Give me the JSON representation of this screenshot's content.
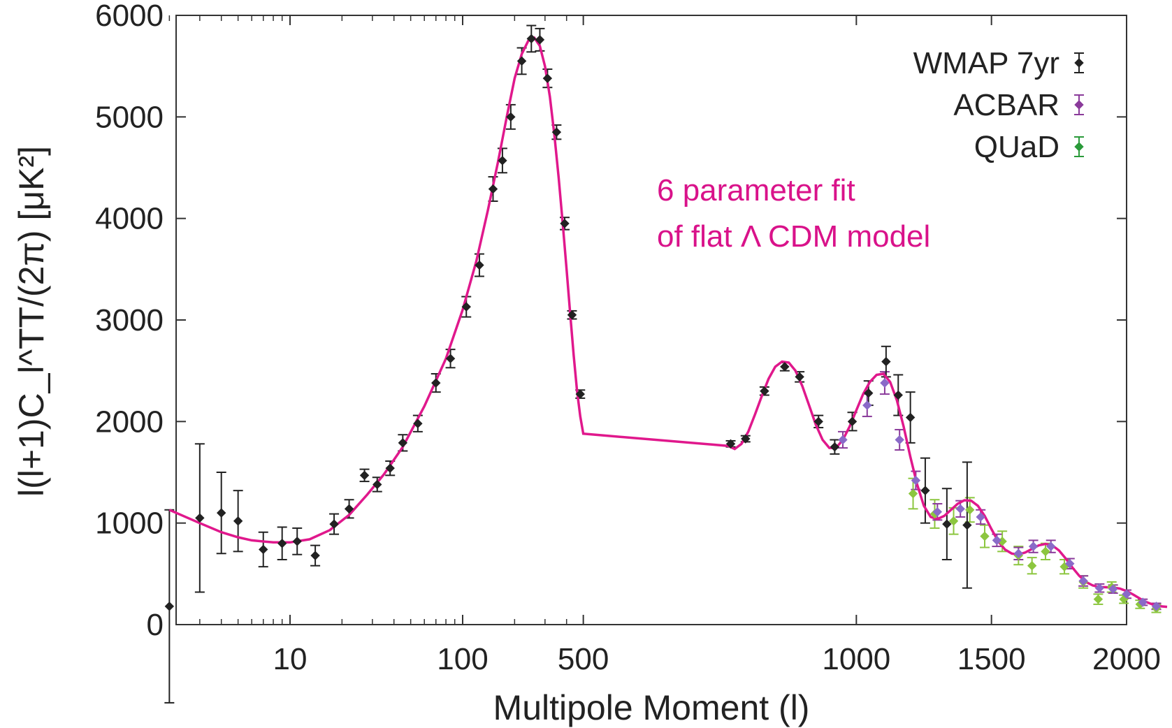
{
  "chart_data": {
    "type": "scatter",
    "xlabel": "Multipole Moment (l)",
    "ylabel": "l(l+1)C_l^TT/(2π) [μK²]",
    "ylim": [
      0,
      6000
    ],
    "yticks": [
      0,
      1000,
      2000,
      3000,
      4000,
      5000,
      6000
    ],
    "xticks": [
      10,
      100,
      500,
      1000,
      1500,
      2000
    ],
    "x_scale": "log below l=500, linear above",
    "grid": false,
    "legend_position": "top-right",
    "annotation": [
      "6 parameter fit",
      "of flat Λ CDM model"
    ],
    "colors": {
      "fit": "#e0188c",
      "annotation": "#d9128a",
      "wmap": "#222222",
      "acbar": "#8a3a9a",
      "quad": "#2a9a3a",
      "acbar_point": "#8a6ac8",
      "quad_point": "#8cc63f"
    },
    "series": [
      {
        "name": "WMAP 7yr",
        "marker": "diamond",
        "points": [
          [
            2,
            180,
            950
          ],
          [
            3,
            1050,
            730
          ],
          [
            4,
            1100,
            400
          ],
          [
            5,
            1020,
            300
          ],
          [
            7,
            740,
            170
          ],
          [
            9,
            800,
            160
          ],
          [
            11,
            820,
            130
          ],
          [
            14,
            680,
            100
          ],
          [
            18,
            990,
            100
          ],
          [
            22,
            1140,
            90
          ],
          [
            27,
            1470,
            60
          ],
          [
            32,
            1380,
            70
          ],
          [
            38,
            1540,
            70
          ],
          [
            45,
            1790,
            80
          ],
          [
            55,
            1980,
            80
          ],
          [
            70,
            2380,
            90
          ],
          [
            85,
            2620,
            90
          ],
          [
            105,
            3130,
            100
          ],
          [
            125,
            3540,
            110
          ],
          [
            150,
            4290,
            120
          ],
          [
            170,
            4570,
            120
          ],
          [
            190,
            5000,
            120
          ],
          [
            220,
            5550,
            130
          ],
          [
            250,
            5770,
            130
          ],
          [
            280,
            5760,
            110
          ],
          [
            310,
            5380,
            90
          ],
          [
            350,
            4850,
            70
          ],
          [
            390,
            3950,
            60
          ],
          [
            430,
            3050,
            40
          ],
          [
            480,
            2270,
            40
          ],
          [
            535,
            1780,
            30
          ],
          [
            590,
            1830,
            30
          ],
          [
            660,
            2300,
            40
          ],
          [
            735,
            2540,
            40
          ],
          [
            790,
            2440,
            50
          ],
          [
            860,
            2000,
            60
          ],
          [
            920,
            1750,
            70
          ],
          [
            985,
            2000,
            90
          ],
          [
            1045,
            2280,
            120
          ],
          [
            1110,
            2590,
            150
          ],
          [
            1155,
            2260,
            200
          ],
          [
            1200,
            2040,
            250
          ],
          [
            1255,
            1320,
            320
          ],
          [
            1335,
            990,
            350
          ],
          [
            1410,
            980,
            620
          ]
        ]
      },
      {
        "name": "ACBAR",
        "marker": "diamond",
        "points": [
          [
            950,
            1820,
            80
          ],
          [
            1040,
            2160,
            110
          ],
          [
            1105,
            2380,
            110
          ],
          [
            1160,
            1820,
            100
          ],
          [
            1220,
            1420,
            90
          ],
          [
            1300,
            1110,
            80
          ],
          [
            1385,
            1140,
            80
          ],
          [
            1460,
            1060,
            70
          ],
          [
            1520,
            830,
            60
          ],
          [
            1600,
            700,
            60
          ],
          [
            1655,
            770,
            60
          ],
          [
            1720,
            770,
            60
          ],
          [
            1790,
            600,
            50
          ],
          [
            1840,
            430,
            50
          ],
          [
            1900,
            360,
            40
          ],
          [
            1950,
            350,
            40
          ],
          [
            2000,
            300,
            40
          ],
          [
            2060,
            220,
            30
          ],
          [
            2110,
            180,
            30
          ]
        ]
      },
      {
        "name": "QUaD",
        "marker": "diamond",
        "points": [
          [
            1210,
            1290,
            150
          ],
          [
            1290,
            1090,
            140
          ],
          [
            1360,
            1020,
            130
          ],
          [
            1420,
            1130,
            120
          ],
          [
            1475,
            870,
            110
          ],
          [
            1540,
            820,
            100
          ],
          [
            1600,
            680,
            90
          ],
          [
            1650,
            580,
            80
          ],
          [
            1700,
            720,
            80
          ],
          [
            1770,
            570,
            70
          ],
          [
            1840,
            420,
            60
          ],
          [
            1895,
            250,
            50
          ],
          [
            1945,
            370,
            50
          ],
          [
            1990,
            250,
            40
          ],
          [
            2050,
            200,
            40
          ],
          [
            2110,
            160,
            40
          ]
        ]
      }
    ],
    "fit_curve": [
      [
        2,
        1130
      ],
      [
        3,
        1000
      ],
      [
        4,
        910
      ],
      [
        5,
        860
      ],
      [
        6,
        830
      ],
      [
        8,
        810
      ],
      [
        10,
        810
      ],
      [
        13,
        840
      ],
      [
        17,
        930
      ],
      [
        22,
        1080
      ],
      [
        28,
        1280
      ],
      [
        35,
        1480
      ],
      [
        45,
        1750
      ],
      [
        60,
        2150
      ],
      [
        80,
        2620
      ],
      [
        100,
        3100
      ],
      [
        120,
        3580
      ],
      [
        140,
        4080
      ],
      [
        160,
        4550
      ],
      [
        180,
        5000
      ],
      [
        200,
        5380
      ],
      [
        220,
        5620
      ],
      [
        240,
        5750
      ],
      [
        260,
        5780
      ],
      [
        280,
        5700
      ],
      [
        300,
        5500
      ],
      [
        320,
        5200
      ],
      [
        340,
        4820
      ],
      [
        360,
        4400
      ],
      [
        380,
        3950
      ],
      [
        400,
        3500
      ],
      [
        420,
        3060
      ],
      [
        440,
        2650
      ],
      [
        460,
        2300
      ],
      [
        480,
        2050
      ],
      [
        500,
        1880
      ],
      [
        525,
        1760
      ],
      [
        550,
        1730
      ],
      [
        575,
        1780
      ],
      [
        600,
        1900
      ],
      [
        625,
        2070
      ],
      [
        650,
        2250
      ],
      [
        675,
        2420
      ],
      [
        700,
        2540
      ],
      [
        725,
        2590
      ],
      [
        750,
        2580
      ],
      [
        775,
        2500
      ],
      [
        800,
        2350
      ],
      [
        825,
        2160
      ],
      [
        850,
        1970
      ],
      [
        875,
        1820
      ],
      [
        900,
        1740
      ],
      [
        925,
        1740
      ],
      [
        950,
        1820
      ],
      [
        975,
        1950
      ],
      [
        1000,
        2110
      ],
      [
        1025,
        2270
      ],
      [
        1050,
        2390
      ],
      [
        1075,
        2460
      ],
      [
        1100,
        2470
      ],
      [
        1125,
        2390
      ],
      [
        1150,
        2210
      ],
      [
        1175,
        1950
      ],
      [
        1200,
        1650
      ],
      [
        1225,
        1380
      ],
      [
        1250,
        1170
      ],
      [
        1275,
        1060
      ],
      [
        1300,
        1040
      ],
      [
        1325,
        1070
      ],
      [
        1350,
        1130
      ],
      [
        1375,
        1190
      ],
      [
        1400,
        1225
      ],
      [
        1425,
        1220
      ],
      [
        1450,
        1170
      ],
      [
        1475,
        1070
      ],
      [
        1500,
        940
      ],
      [
        1525,
        820
      ],
      [
        1550,
        740
      ],
      [
        1575,
        700
      ],
      [
        1600,
        690
      ],
      [
        1625,
        710
      ],
      [
        1650,
        745
      ],
      [
        1675,
        780
      ],
      [
        1700,
        795
      ],
      [
        1725,
        780
      ],
      [
        1750,
        730
      ],
      [
        1775,
        650
      ],
      [
        1800,
        560
      ],
      [
        1825,
        480
      ],
      [
        1850,
        420
      ],
      [
        1875,
        385
      ],
      [
        1900,
        370
      ],
      [
        1925,
        368
      ],
      [
        1950,
        365
      ],
      [
        1975,
        355
      ],
      [
        2000,
        330
      ],
      [
        2025,
        295
      ],
      [
        2050,
        255
      ],
      [
        2075,
        220
      ],
      [
        2100,
        195
      ],
      [
        2125,
        180
      ],
      [
        2150,
        175
      ]
    ]
  }
}
